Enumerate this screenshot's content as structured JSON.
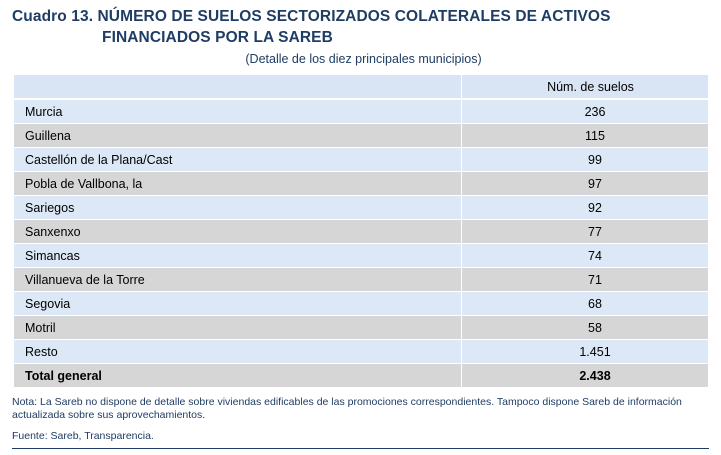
{
  "title": {
    "line1": "Cuadro 13. NÚMERO DE SUELOS SECTORIZADOS COLATERALES DE ACTIVOS",
    "line2": "FINANCIADOS POR LA SAREB"
  },
  "subtitle": "(Detalle de los diez principales municipios)",
  "table": {
    "header": {
      "col1": "",
      "col2": "Núm. de suelos"
    },
    "rows": [
      {
        "municipio": "Murcia",
        "suelos": "236"
      },
      {
        "municipio": "Guillena",
        "suelos": "115"
      },
      {
        "municipio": "Castellón de la Plana/Cast",
        "suelos": "99"
      },
      {
        "municipio": "Pobla de Vallbona, la",
        "suelos": "97"
      },
      {
        "municipio": "Sariegos",
        "suelos": "92"
      },
      {
        "municipio": "Sanxenxo",
        "suelos": "77"
      },
      {
        "municipio": "Simancas",
        "suelos": "74"
      },
      {
        "municipio": "Villanueva de la Torre",
        "suelos": "71"
      },
      {
        "municipio": "Segovia",
        "suelos": "68"
      },
      {
        "municipio": "Motril",
        "suelos": "58"
      },
      {
        "municipio": "Resto",
        "suelos": "1.451"
      }
    ],
    "total": {
      "label": "Total general",
      "value": "2.438"
    }
  },
  "note": "Nota: La Sareb no dispone de detalle sobre viviendas edificables de las promociones correspondientes. Tampoco dispone Sareb de información actualizada sobre sus aprovechamientos.",
  "source": "Fuente: Sareb, Transparencia.",
  "colors": {
    "title": "#1f3d64",
    "row_blue": "#dde8f6",
    "row_grey": "#d6d6d6",
    "header": "#d9e5f4"
  }
}
